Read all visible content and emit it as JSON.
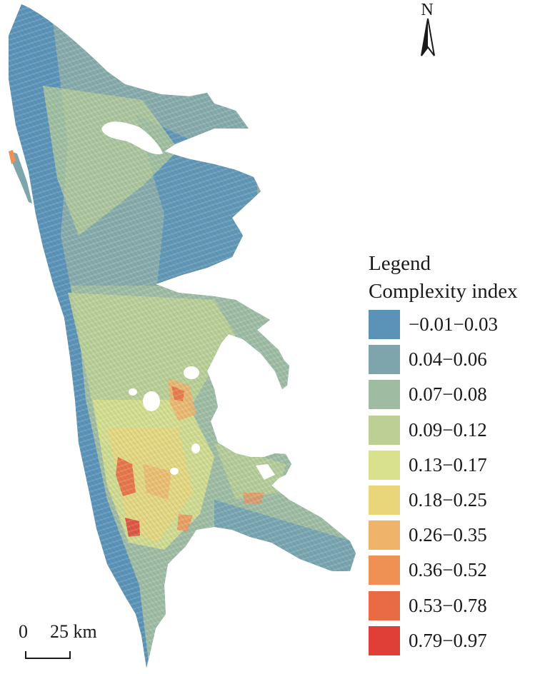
{
  "north_label": "N",
  "legend": {
    "title": "Legend",
    "subtitle": "Complexity index",
    "items": [
      {
        "label": "−0.01−0.03",
        "color": "#5b93b8"
      },
      {
        "label": "0.04−0.06",
        "color": "#7fa5ac"
      },
      {
        "label": "0.07−0.08",
        "color": "#9fbca3"
      },
      {
        "label": "0.09−0.12",
        "color": "#bcd095"
      },
      {
        "label": "0.13−0.17",
        "color": "#d9e18c"
      },
      {
        "label": "0.18−0.25",
        "color": "#e9d57a"
      },
      {
        "label": "0.26−0.35",
        "color": "#f0b36a"
      },
      {
        "label": "0.36−0.52",
        "color": "#ef9055"
      },
      {
        "label": "0.53−0.78",
        "color": "#e86b43"
      },
      {
        "label": "0.79−0.97",
        "color": "#df3f34"
      }
    ]
  },
  "scale": {
    "zero": "0",
    "label": "25 km"
  }
}
